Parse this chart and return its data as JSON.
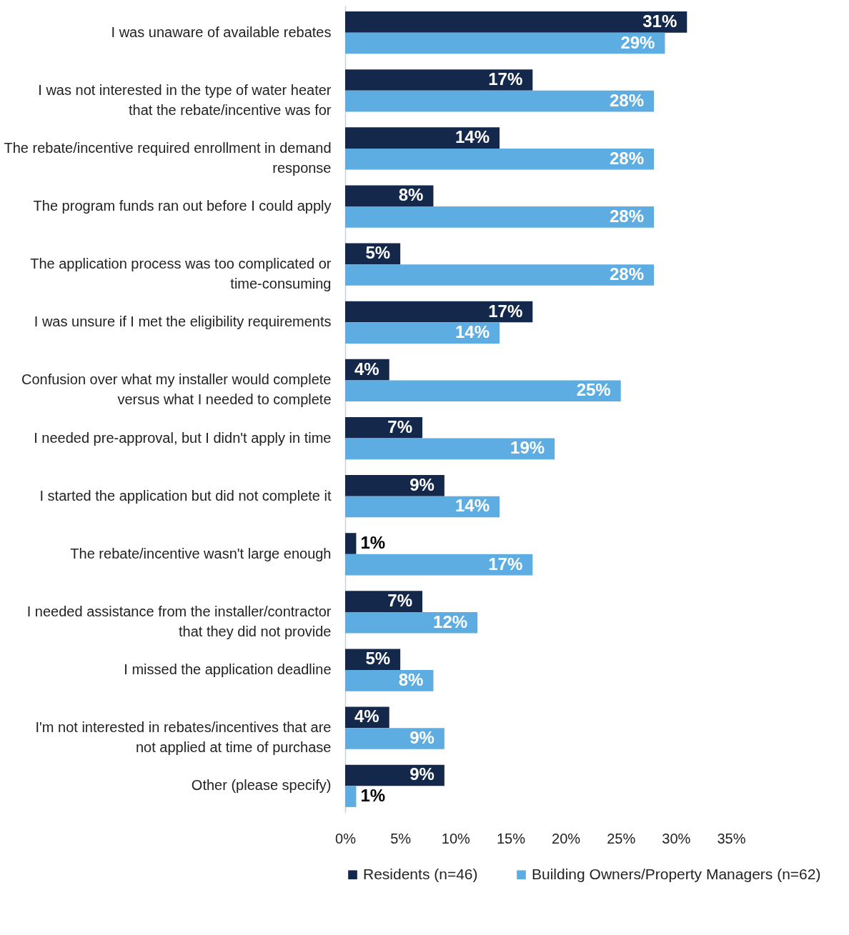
{
  "chart_data": {
    "type": "bar",
    "orientation": "horizontal",
    "categories": [
      "I was unaware of available rebates",
      "I was not interested in the type of water heater that the rebate/incentive was for",
      "The rebate/incentive required enrollment in demand response",
      "The program funds ran out before I could apply",
      "The application process was too complicated or time-consuming",
      "I was unsure if I met the eligibility requirements",
      "Confusion over what my installer would complete versus what I needed to complete",
      "I needed pre-approval, but I didn't apply in time",
      "I started the application but did not complete it",
      "The rebate/incentive wasn't large enough",
      "I needed assistance from the installer/contractor that they did not provide",
      "I missed the application deadline",
      "I'm not interested in rebates/incentives that are not applied at time of purchase",
      "Other (please specify)"
    ],
    "series": [
      {
        "name": "Residents (n=46)",
        "color": "#14284b",
        "values": [
          31,
          17,
          14,
          8,
          5,
          17,
          4,
          7,
          9,
          1,
          7,
          5,
          4,
          9
        ],
        "value_labels": [
          "31%",
          "17%",
          "14%",
          "8%",
          "5%",
          "17%",
          "4%",
          "7%",
          "9%",
          "1%",
          "7%",
          "5%",
          "4%",
          "9%"
        ]
      },
      {
        "name": "Building Owners/Property Managers (n=62)",
        "color": "#5dade2",
        "values": [
          29,
          28,
          28,
          28,
          28,
          14,
          25,
          19,
          14,
          17,
          12,
          8,
          9,
          1
        ],
        "value_labels": [
          "29%",
          "28%",
          "28%",
          "28%",
          "28%",
          "14%",
          "25%",
          "19%",
          "14%",
          "17%",
          "12%",
          "8%",
          "9%",
          "1%"
        ]
      }
    ],
    "xlim": [
      0,
      35
    ],
    "xticks": [
      {
        "value": 0,
        "label": "0%"
      },
      {
        "value": 5,
        "label": "5%"
      },
      {
        "value": 10,
        "label": "10%"
      },
      {
        "value": 15,
        "label": "15%"
      },
      {
        "value": 20,
        "label": "20%"
      },
      {
        "value": 25,
        "label": "25%"
      },
      {
        "value": 30,
        "label": "30%"
      },
      {
        "value": 35,
        "label": "35%"
      }
    ],
    "grid": false,
    "legend": "bottom"
  }
}
